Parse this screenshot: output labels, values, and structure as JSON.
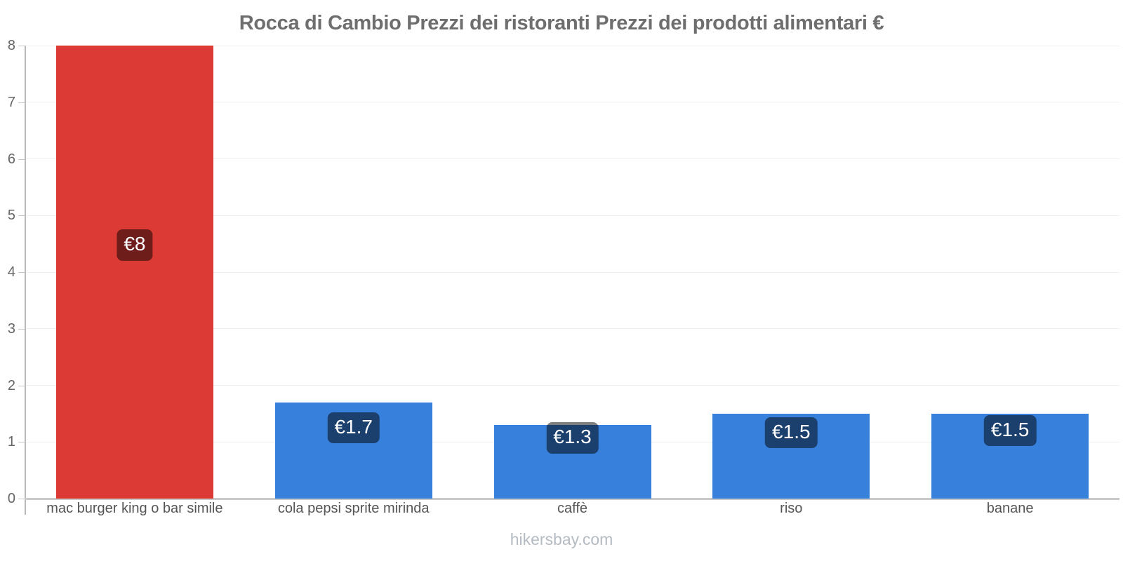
{
  "title": "Rocca di Cambio Prezzi dei ristoranti Prezzi dei prodotti alimentari €",
  "footer": "hikersbay.com",
  "colors": {
    "bar_red": "#dc3a34",
    "bar_blue": "#3781dc",
    "value_label_bg": "rgba(0,0,0,0.5)",
    "value_label_text": "#ffffff",
    "title_text": "#6e6e6e",
    "axis_line": "#c9c9c9",
    "grid_line": "#f1f1f1",
    "tick_label": "#666666",
    "category_label": "#555555",
    "footer_text": "#b5bbc3"
  },
  "chart_data": {
    "type": "bar",
    "title": "Rocca di Cambio Prezzi dei ristoranti Prezzi dei prodotti alimentari €",
    "categories": [
      "mac burger king o bar simile",
      "cola pepsi sprite mirinda",
      "caffè",
      "riso",
      "banane"
    ],
    "values": [
      8,
      1.7,
      1.3,
      1.5,
      1.5
    ],
    "value_labels": [
      "€8",
      "€1.7",
      "€1.3",
      "€1.5",
      "€1.5"
    ],
    "bar_colors": [
      "#dc3a34",
      "#3781dc",
      "#3781dc",
      "#3781dc",
      "#3781dc"
    ],
    "currency": "€",
    "xlabel": "",
    "ylabel": "",
    "ylim": [
      0,
      8
    ],
    "yticks": [
      0,
      1,
      2,
      3,
      4,
      5,
      6,
      7,
      8
    ],
    "grid": true,
    "legend": false
  }
}
